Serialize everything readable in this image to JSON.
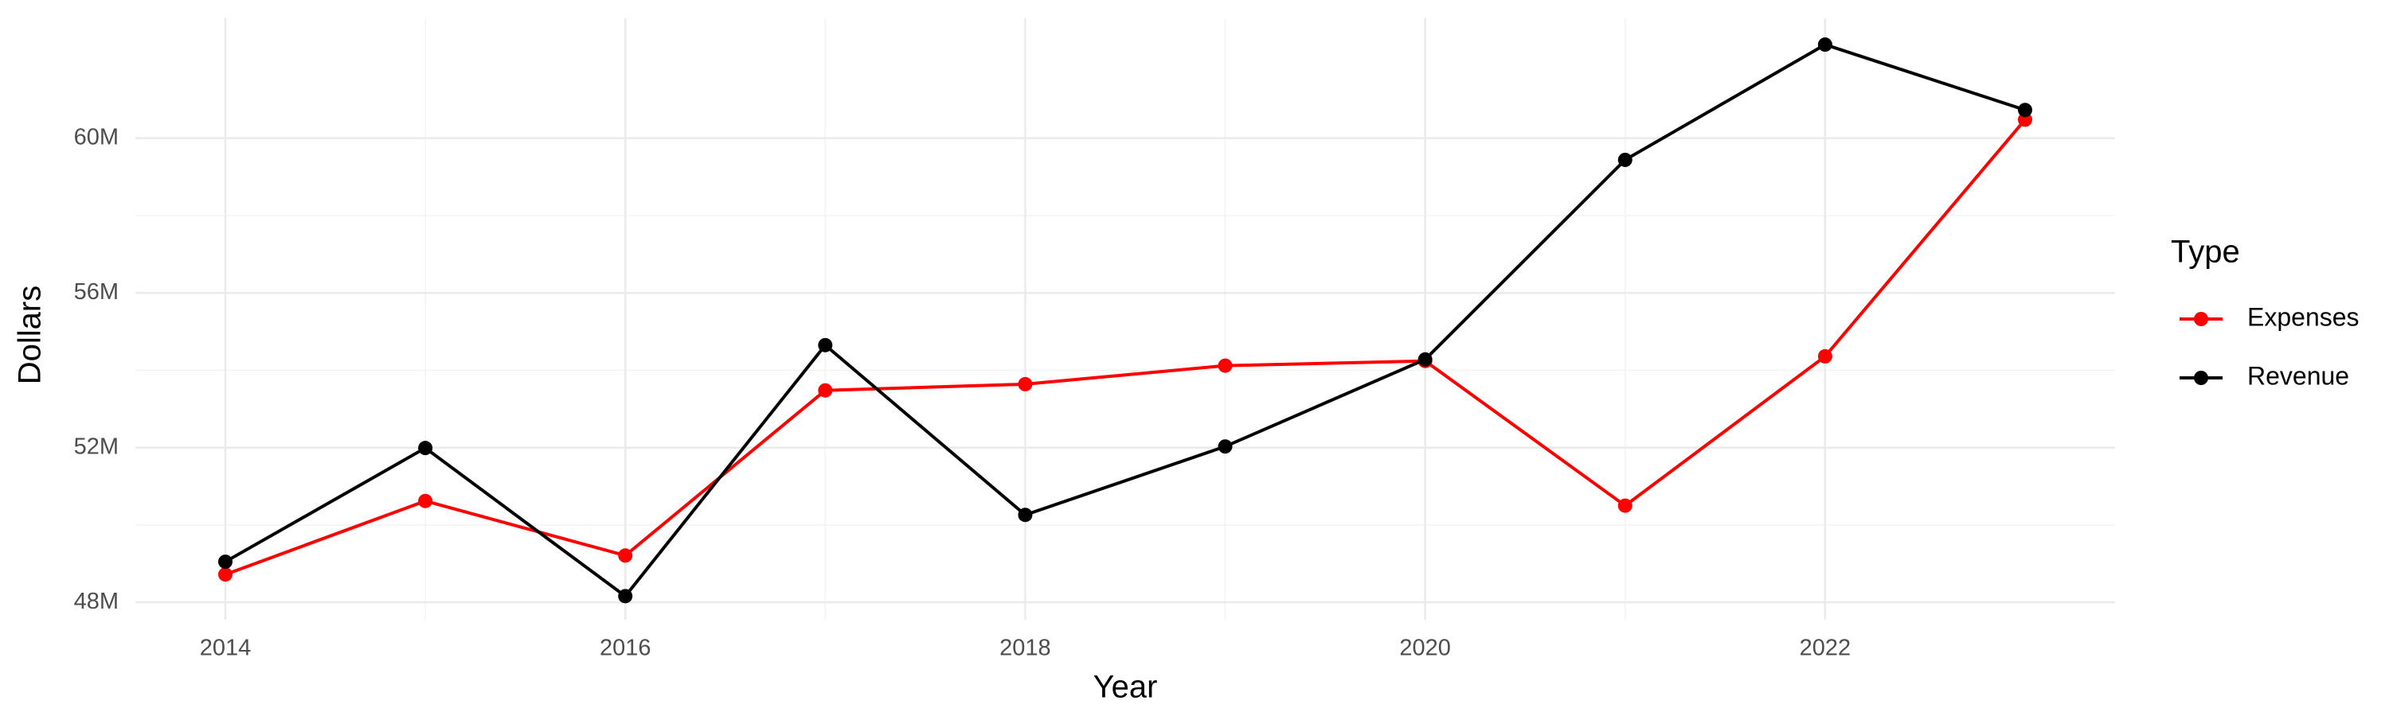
{
  "chart_data": {
    "type": "line",
    "x_label": "Year",
    "y_label": "Dollars",
    "x": [
      2014,
      2015,
      2016,
      2017,
      2018,
      2019,
      2020,
      2021,
      2022,
      2023
    ],
    "series": [
      {
        "name": "Expenses",
        "color": "#ff0000",
        "values": [
          48720000,
          50620000,
          49210000,
          53480000,
          53640000,
          54120000,
          54240000,
          50500000,
          54360000,
          60480000
        ]
      },
      {
        "name": "Revenue",
        "color": "#000000",
        "values": [
          49050000,
          51990000,
          48160000,
          54650000,
          50260000,
          52030000,
          54280000,
          59440000,
          62420000,
          60730000
        ]
      }
    ],
    "legend_title": "Type",
    "legend_position": "right",
    "xlim": [
      2013.55,
      2023.45
    ],
    "xticks": [
      2014,
      2016,
      2018,
      2020,
      2022
    ],
    "ylim": [
      47550000,
      63100000
    ],
    "yticks": [
      {
        "value": 48000000,
        "label": "48M"
      },
      {
        "value": 52000000,
        "label": "52M"
      },
      {
        "value": 56000000,
        "label": "56M"
      },
      {
        "value": 60000000,
        "label": "60M"
      }
    ],
    "grid": true
  }
}
